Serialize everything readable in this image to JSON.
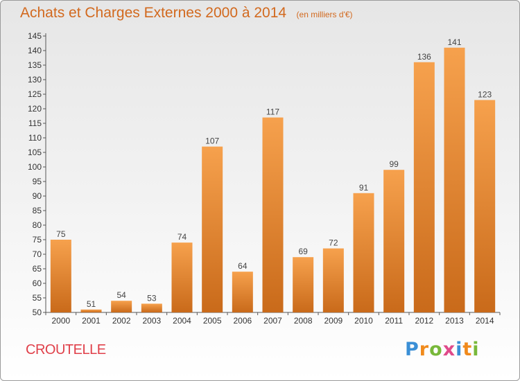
{
  "title": "Achats et Charges Externes 2000 à 2014",
  "unit_note": "(en milliers d'€)",
  "commune": "CROUTELLE",
  "logo": {
    "text": "Proxiti",
    "colors": [
      "#3a8fd6",
      "#f08a1c",
      "#78b83a",
      "#e04a8a"
    ]
  },
  "colors": {
    "bar_light": "#f6a14d",
    "bar_dark": "#c96a1a",
    "title": "#d2691e",
    "commune": "#e0404a",
    "axis": "#555555"
  },
  "chart_data": {
    "type": "bar",
    "title": "Achats et Charges Externes 2000 à 2014",
    "subtitle": "(en milliers d'€)",
    "categories": [
      "2000",
      "2001",
      "2002",
      "2003",
      "2004",
      "2005",
      "2006",
      "2007",
      "2008",
      "2009",
      "2010",
      "2011",
      "2012",
      "2013",
      "2014"
    ],
    "values": [
      75,
      51,
      54,
      53,
      74,
      107,
      64,
      117,
      69,
      72,
      91,
      99,
      136,
      141,
      123
    ],
    "ylim": [
      50,
      145
    ],
    "yticks": [
      50,
      55,
      60,
      65,
      70,
      75,
      80,
      85,
      90,
      95,
      100,
      105,
      110,
      115,
      120,
      125,
      130,
      135,
      140,
      145
    ],
    "grid": false,
    "legend": "none"
  }
}
